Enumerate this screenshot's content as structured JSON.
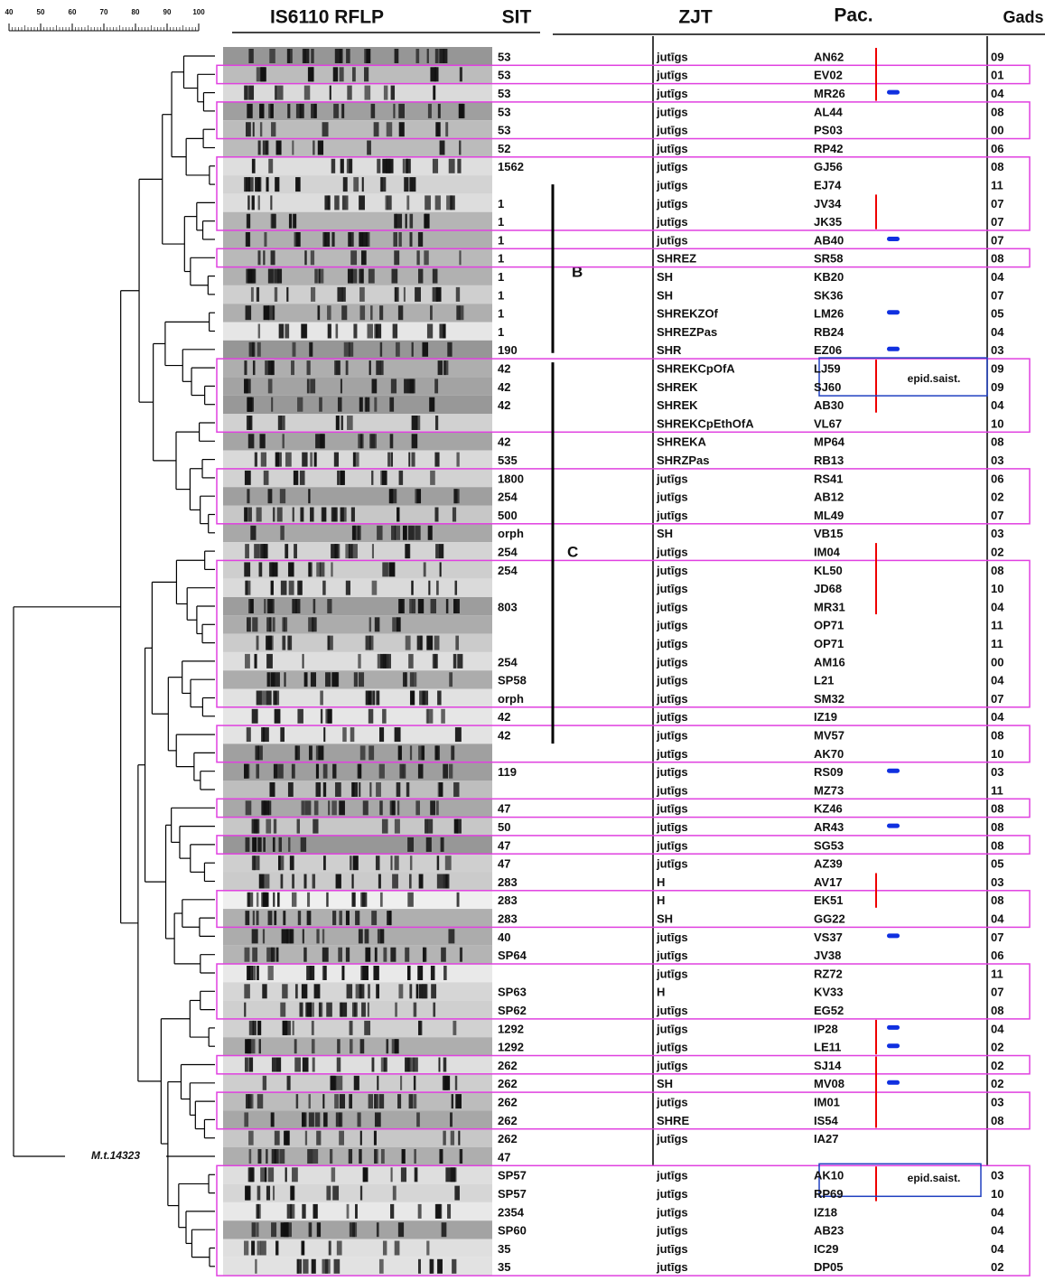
{
  "header": {
    "gel": "IS6110 RFLP",
    "sit": "SIT",
    "zjt": "ZJT",
    "pac": "Pac.",
    "gads": "Gads"
  },
  "scale": {
    "ticks": [
      40,
      50,
      60,
      70,
      80,
      90,
      100
    ]
  },
  "labels": {
    "cluster_b": "B",
    "cluster_c": "C",
    "reference": "M.t.14323",
    "epid_1": "epid.saist.",
    "epid_2": "epid.saist."
  },
  "rows": [
    [
      "53",
      "jutīgs",
      "AN62",
      "09"
    ],
    [
      "53",
      "jutīgs",
      "EV02",
      "01"
    ],
    [
      "53",
      "jutīgs",
      "MR26",
      "04"
    ],
    [
      "53",
      "jutīgs",
      "AL44",
      "08"
    ],
    [
      "53",
      "jutīgs",
      "PS03",
      "00"
    ],
    [
      "52",
      "jutīgs",
      "RP42",
      "06"
    ],
    [
      "1562",
      "jutīgs",
      "GJ56",
      "08"
    ],
    [
      null,
      "jutīgs",
      "EJ74",
      "11"
    ],
    [
      "1",
      "jutīgs",
      "JV34",
      "07"
    ],
    [
      "1",
      "jutīgs",
      "JK35",
      "07"
    ],
    [
      "1",
      "jutīgs",
      "AB40",
      "07"
    ],
    [
      "1",
      "SHREZ",
      "SR58",
      "08"
    ],
    [
      "1",
      "SH",
      "KB20",
      "04"
    ],
    [
      "1",
      "SH",
      "SK36",
      "07"
    ],
    [
      "1",
      "SHREKZOf",
      "LM26",
      "05"
    ],
    [
      "1",
      "SHREZPas",
      "RB24",
      "04"
    ],
    [
      "190",
      "SHR",
      "EZ06",
      "03"
    ],
    [
      "42",
      "SHREKCpOfA",
      "LJ59",
      "09"
    ],
    [
      "42",
      "SHREK",
      "SJ60",
      "09"
    ],
    [
      "42",
      "SHREK",
      "AB30",
      "04"
    ],
    [
      null,
      "SHREKCpEthOfA",
      "VL67",
      "10"
    ],
    [
      "42",
      "SHREKA",
      "MP64",
      "08"
    ],
    [
      "535",
      "SHRZPas",
      "RB13",
      "03"
    ],
    [
      "1800",
      "jutīgs",
      "RS41",
      "06"
    ],
    [
      "254",
      "jutīgs",
      "AB12",
      "02"
    ],
    [
      "500",
      "jutīgs",
      "ML49",
      "07"
    ],
    [
      "orph",
      "SH",
      "VB15",
      "03"
    ],
    [
      "254",
      "jutīgs",
      "IM04",
      "02"
    ],
    [
      "254",
      "jutīgs",
      "KL50",
      "08"
    ],
    [
      null,
      "jutīgs",
      "JD68",
      "10"
    ],
    [
      "803",
      "jutīgs",
      "MR31",
      "04"
    ],
    [
      null,
      "jutīgs",
      "OP71",
      "11"
    ],
    [
      null,
      "jutīgs",
      "OP71",
      "11"
    ],
    [
      "254",
      "jutīgs",
      "AM16",
      "00"
    ],
    [
      "SP58",
      "jutīgs",
      "L21",
      "04"
    ],
    [
      "orph",
      "jutīgs",
      "SM32",
      "07"
    ],
    [
      "42",
      "jutīgs",
      "IZ19",
      "04"
    ],
    [
      "42",
      "jutīgs",
      "MV57",
      "08"
    ],
    [
      null,
      "jutīgs",
      "AK70",
      "10"
    ],
    [
      "119",
      "jutīgs",
      "RS09",
      "03"
    ],
    [
      null,
      "jutīgs",
      "MZ73",
      "11"
    ],
    [
      "47",
      "jutīgs",
      "KZ46",
      "08"
    ],
    [
      "50",
      "jutīgs",
      "AR43",
      "08"
    ],
    [
      "47",
      "jutīgs",
      "SG53",
      "08"
    ],
    [
      "47",
      "jutīgs",
      "AZ39",
      "05"
    ],
    [
      "283",
      "H",
      "AV17",
      "03"
    ],
    [
      "283",
      "H",
      "EK51",
      "08"
    ],
    [
      "283",
      "SH",
      "GG22",
      "04"
    ],
    [
      "40",
      "jutīgs",
      "VS37",
      "07"
    ],
    [
      "SP64",
      "jutīgs",
      "JV38",
      "06"
    ],
    [
      null,
      "jutīgs",
      "RZ72",
      "11"
    ],
    [
      "SP63",
      "H",
      "KV33",
      "07"
    ],
    [
      "SP62",
      "jutīgs",
      "EG52",
      "08"
    ],
    [
      "1292",
      "jutīgs",
      "IP28",
      "04"
    ],
    [
      "1292",
      "jutīgs",
      "LE11",
      "02"
    ],
    [
      "262",
      "jutīgs",
      "SJ14",
      "02"
    ],
    [
      "262",
      "SH",
      "MV08",
      "02"
    ],
    [
      "262",
      "jutīgs",
      "IM01",
      "03"
    ],
    [
      "262",
      "SHRE",
      "IS54",
      "08"
    ],
    [
      "262",
      "jutīgs",
      "IA27",
      null
    ],
    [
      "47",
      null,
      null,
      null
    ],
    [
      "SP57",
      "jutīgs",
      "AK10",
      "03"
    ],
    [
      "SP57",
      "jutīgs",
      "RP69",
      "10"
    ],
    [
      "2354",
      "jutīgs",
      "IZ18",
      "04"
    ],
    [
      "SP60",
      "jutīgs",
      "AB23",
      "04"
    ],
    [
      "35",
      "jutīgs",
      "IC29",
      "04"
    ],
    [
      "35",
      "jutīgs",
      "DP05",
      "02"
    ]
  ]
}
